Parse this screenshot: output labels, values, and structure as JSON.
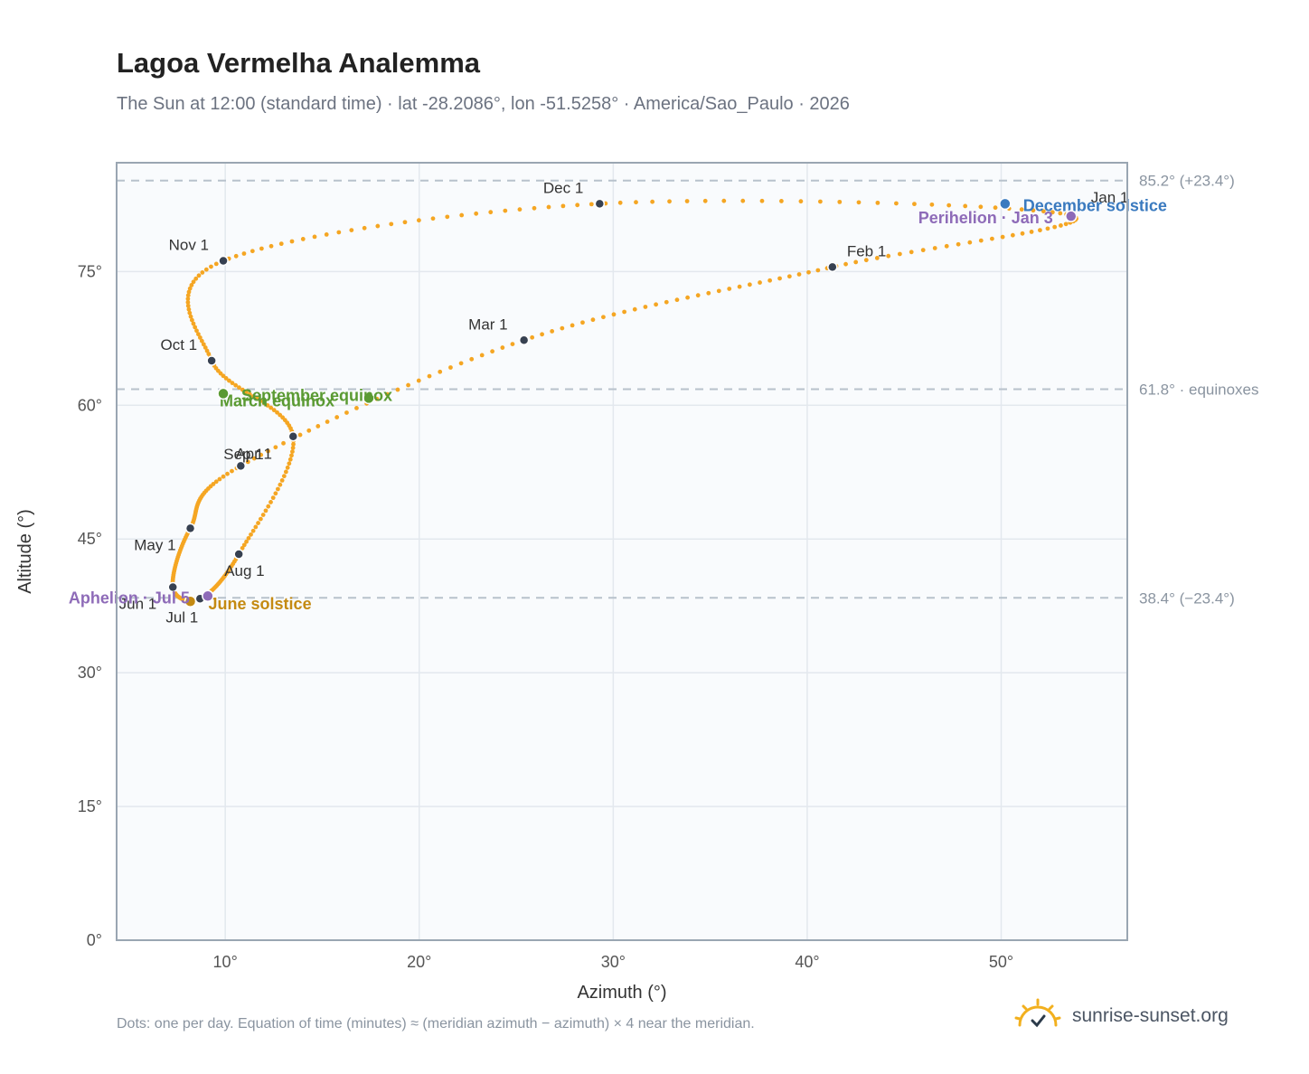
{
  "title": "Lagoa Vermelha Analemma",
  "subtitle": "The Sun at 12:00 (standard time) · lat -28.2086°, lon -51.5258° · America/Sao_Paulo · 2026",
  "footnote": "Dots: one per day. Equation of time (minutes) ≈ (meridian azimuth − azimuth) × 4 near the meridian.",
  "brand": {
    "text": "sunrise-sunset.org",
    "icon": "sun-logo-icon"
  },
  "colors": {
    "dots": "#f5a623",
    "month_marker": "#374151",
    "equinox": "#5a9a32",
    "december_solstice": "#3a7abf",
    "june_solstice": "#c48a12",
    "perihelion_aphelion": "#8e6bb8",
    "reference_line": "#b8c2cc",
    "plot_background": "#f9fbfd",
    "frame": "#9aa6b2",
    "grid": "#e3e8ee"
  },
  "chart_data": {
    "type": "scatter",
    "xlabel": "Azimuth (°)",
    "ylabel": "Altitude (°)",
    "xlim": [
      4.4,
      56.5
    ],
    "ylim": [
      0,
      87.2
    ],
    "xticks": [
      10,
      20,
      30,
      40,
      50
    ],
    "yticks": [
      0,
      15,
      30,
      45,
      60,
      75
    ],
    "x_tick_labels": [
      "10°",
      "20°",
      "30°",
      "40°",
      "50°"
    ],
    "y_tick_labels": [
      "0°",
      "15°",
      "30°",
      "45°",
      "60°",
      "75°"
    ],
    "grid": true,
    "reference_lines": [
      {
        "altitude": 85.2,
        "label": "85.2° (+23.4°)"
      },
      {
        "altitude": 61.8,
        "label": "61.8° · equinoxes"
      },
      {
        "altitude": 38.4,
        "label": "38.4° (−23.4°)"
      }
    ],
    "month_markers": [
      {
        "label": "Jan 1",
        "azimuth": 53.6,
        "altitude": 81.3
      },
      {
        "label": "Feb 1",
        "azimuth": 41.3,
        "altitude": 75.5
      },
      {
        "label": "Mar 1",
        "azimuth": 25.4,
        "altitude": 67.3
      },
      {
        "label": "Apr 1",
        "azimuth": 10.8,
        "altitude": 53.2
      },
      {
        "label": "May 1",
        "azimuth": 8.2,
        "altitude": 46.2
      },
      {
        "label": "Jun 1",
        "azimuth": 7.3,
        "altitude": 39.6
      },
      {
        "label": "Jul 1",
        "azimuth": 8.7,
        "altitude": 38.3
      },
      {
        "label": "Aug 1",
        "azimuth": 10.7,
        "altitude": 43.3
      },
      {
        "label": "Sep 1",
        "azimuth": 13.5,
        "altitude": 56.5
      },
      {
        "label": "Oct 1",
        "azimuth": 9.3,
        "altitude": 65.0
      },
      {
        "label": "Nov 1",
        "azimuth": 9.9,
        "altitude": 76.2
      },
      {
        "label": "Dec 1",
        "azimuth": 29.3,
        "altitude": 82.6
      }
    ],
    "events": [
      {
        "label": "December solstice",
        "azimuth": 50.2,
        "altitude": 82.6
      },
      {
        "label": "Perihelion · Jan 3",
        "azimuth": 53.6,
        "altitude": 81.2
      },
      {
        "label": "March equinox",
        "azimuth": 17.4,
        "altitude": 60.8
      },
      {
        "label": "September equinox",
        "azimuth": 9.9,
        "altitude": 61.3
      },
      {
        "label": "June solstice",
        "azimuth": 8.2,
        "altitude": 38.0
      },
      {
        "label": "Aphelion · Jul 5",
        "azimuth": 9.1,
        "altitude": 38.6
      }
    ]
  }
}
